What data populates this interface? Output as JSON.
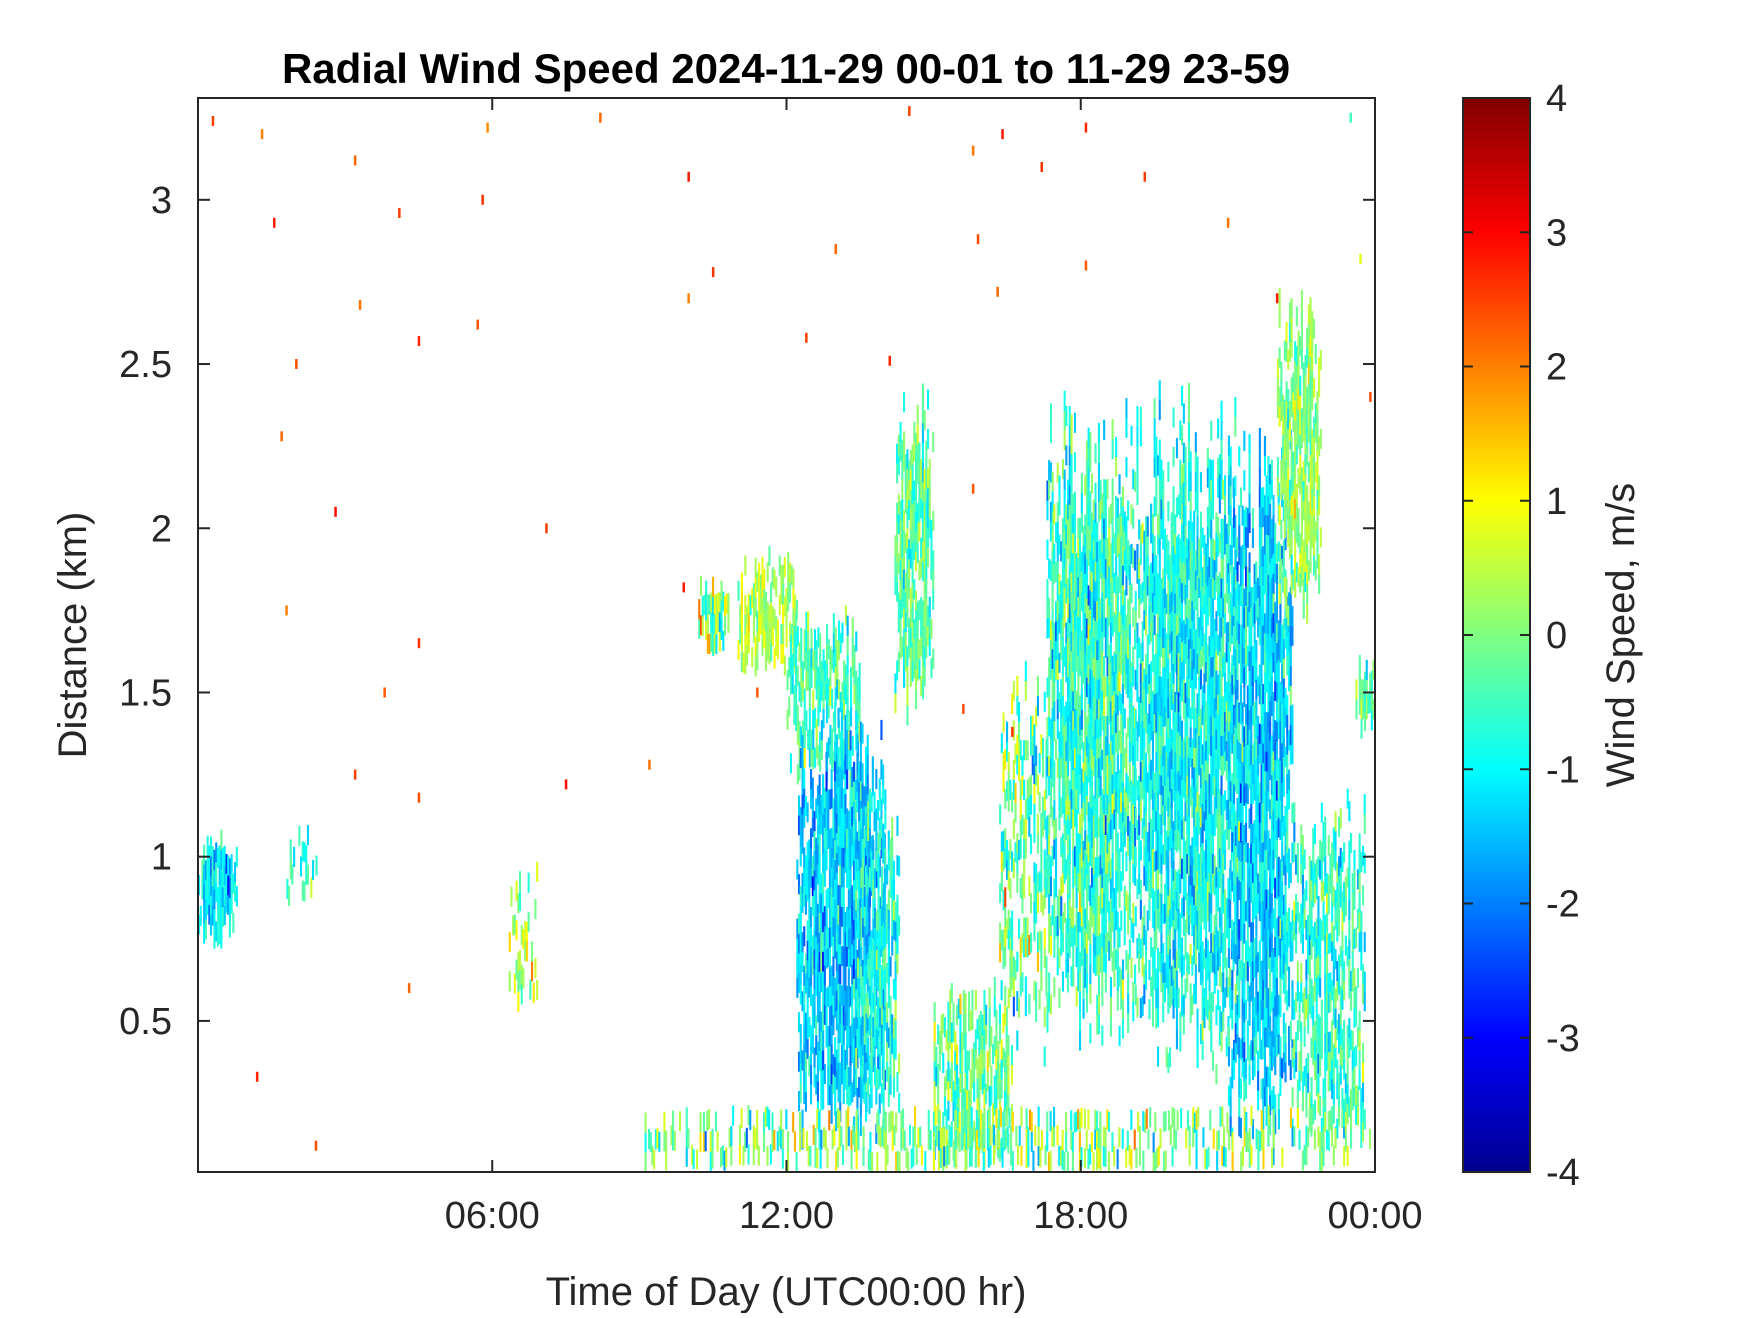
{
  "chart_data": {
    "type": "heatmap",
    "title": "Radial Wind Speed 2024-11-29 00-01 to 11-29 23-59",
    "xlabel": "Time of Day (UTC00:00 hr)",
    "ylabel": "Distance (km)",
    "x_unit": "hours",
    "xlim": [
      0,
      24
    ],
    "ylim": [
      0.04,
      3.31
    ],
    "x_ticks": [
      6,
      12,
      18,
      24
    ],
    "x_tick_labels": [
      "06:00",
      "12:00",
      "18:00",
      "00:00"
    ],
    "y_ticks": [
      0.5,
      1,
      1.5,
      2,
      2.5,
      3
    ],
    "y_tick_labels": [
      "0.5",
      "1",
      "1.5",
      "2",
      "2.5",
      "3"
    ],
    "colorbar": {
      "label": "Wind Speed, m/s",
      "colormap": "jet",
      "clim": [
        -4,
        4
      ],
      "ticks": [
        -4,
        -3,
        -2,
        -1,
        0,
        1,
        2,
        3,
        4
      ],
      "tick_labels": [
        "-4",
        "-3",
        "-2",
        "-1",
        "0",
        "1",
        "2",
        "3",
        "4"
      ]
    },
    "grid": false,
    "cell_width_hours": 0.035,
    "cell_height_km": 0.06,
    "regions": [
      {
        "x": [
          0.0,
          0.8
        ],
        "y": [
          0.72,
          1.05
        ],
        "mean": -1.2,
        "spread": 0.9,
        "density": 0.9
      },
      {
        "x": [
          1.8,
          2.4
        ],
        "y": [
          0.85,
          1.08
        ],
        "mean": -0.5,
        "spread": 1.0,
        "density": 0.3
      },
      {
        "x": [
          6.3,
          6.9
        ],
        "y": [
          0.5,
          0.95
        ],
        "mean": 0.5,
        "spread": 1.0,
        "density": 0.35
      },
      {
        "x": [
          10.2,
          10.8
        ],
        "y": [
          1.6,
          1.8
        ],
        "mean": 0.2,
        "spread": 1.6,
        "density": 0.95
      },
      {
        "x": [
          11.0,
          12.2
        ],
        "y": [
          1.55,
          1.9
        ],
        "mean": 0.4,
        "spread": 0.8,
        "density": 0.75
      },
      {
        "x": [
          12.0,
          13.5
        ],
        "y": [
          1.2,
          1.75
        ],
        "mean": -0.5,
        "spread": 1.0,
        "density": 0.7
      },
      {
        "x": [
          12.2,
          14.0
        ],
        "y": [
          0.1,
          1.45
        ],
        "mean": -1.4,
        "spread": 0.9,
        "density": 0.9
      },
      {
        "x": [
          13.4,
          14.3
        ],
        "y": [
          0.15,
          1.2
        ],
        "mean": -0.8,
        "spread": 1.0,
        "density": 0.7
      },
      {
        "x": [
          14.2,
          15.0
        ],
        "y": [
          1.4,
          2.4
        ],
        "mean": -0.3,
        "spread": 0.9,
        "density": 0.85
      },
      {
        "x": [
          15.0,
          16.6
        ],
        "y": [
          0.04,
          0.6
        ],
        "mean": -0.2,
        "spread": 1.1,
        "density": 0.7
      },
      {
        "x": [
          16.3,
          17.3
        ],
        "y": [
          0.35,
          1.6
        ],
        "mean": -0.3,
        "spread": 1.3,
        "density": 0.55
      },
      {
        "x": [
          17.3,
          19.1
        ],
        "y": [
          0.4,
          2.45
        ],
        "mean": -0.6,
        "spread": 1.1,
        "density": 0.9
      },
      {
        "x": [
          19.1,
          21.2
        ],
        "y": [
          0.3,
          2.45
        ],
        "mean": -0.9,
        "spread": 1.0,
        "density": 0.9
      },
      {
        "x": [
          21.0,
          22.3
        ],
        "y": [
          0.05,
          2.3
        ],
        "mean": -1.3,
        "spread": 1.0,
        "density": 0.9
      },
      {
        "x": [
          22.0,
          22.9
        ],
        "y": [
          1.7,
          2.72
        ],
        "mean": 0.1,
        "spread": 0.9,
        "density": 0.8
      },
      {
        "x": [
          22.3,
          23.8
        ],
        "y": [
          0.04,
          1.2
        ],
        "mean": -0.6,
        "spread": 1.0,
        "density": 0.7
      },
      {
        "x": [
          23.6,
          24.0
        ],
        "y": [
          1.35,
          1.6
        ],
        "mean": -0.3,
        "spread": 0.9,
        "density": 0.8
      },
      {
        "x": [
          9.0,
          24.0
        ],
        "y": [
          0.04,
          0.2
        ],
        "mean": 0.0,
        "spread": 1.4,
        "density": 0.5
      }
    ],
    "isolated_points": [
      {
        "x": 0.3,
        "y": 3.24,
        "v": 2.5
      },
      {
        "x": 1.3,
        "y": 3.2,
        "v": 2.0
      },
      {
        "x": 1.55,
        "y": 2.93,
        "v": 2.8
      },
      {
        "x": 3.2,
        "y": 3.12,
        "v": 2.2
      },
      {
        "x": 4.1,
        "y": 2.96,
        "v": 2.5
      },
      {
        "x": 5.9,
        "y": 3.22,
        "v": 1.9
      },
      {
        "x": 5.8,
        "y": 3.0,
        "v": 2.6
      },
      {
        "x": 8.2,
        "y": 3.25,
        "v": 2.2
      },
      {
        "x": 10.0,
        "y": 3.07,
        "v": 2.8
      },
      {
        "x": 3.3,
        "y": 2.68,
        "v": 2.1
      },
      {
        "x": 2.0,
        "y": 2.5,
        "v": 2.4
      },
      {
        "x": 5.7,
        "y": 2.62,
        "v": 2.3
      },
      {
        "x": 4.5,
        "y": 2.57,
        "v": 2.7
      },
      {
        "x": 1.7,
        "y": 2.28,
        "v": 2.2
      },
      {
        "x": 2.8,
        "y": 2.05,
        "v": 2.9
      },
      {
        "x": 7.1,
        "y": 2.0,
        "v": 2.5
      },
      {
        "x": 1.8,
        "y": 1.75,
        "v": 2.0
      },
      {
        "x": 4.5,
        "y": 1.65,
        "v": 2.6
      },
      {
        "x": 3.8,
        "y": 1.5,
        "v": 2.3
      },
      {
        "x": 3.2,
        "y": 1.25,
        "v": 2.5
      },
      {
        "x": 4.5,
        "y": 1.18,
        "v": 2.4
      },
      {
        "x": 9.2,
        "y": 1.28,
        "v": 2.1
      },
      {
        "x": 7.5,
        "y": 1.22,
        "v": 2.9
      },
      {
        "x": 4.3,
        "y": 0.6,
        "v": 2.2
      },
      {
        "x": 1.2,
        "y": 0.33,
        "v": 2.7
      },
      {
        "x": 2.4,
        "y": 0.12,
        "v": 2.4
      },
      {
        "x": 10.0,
        "y": 2.7,
        "v": 2.0
      },
      {
        "x": 10.5,
        "y": 2.78,
        "v": 2.6
      },
      {
        "x": 9.9,
        "y": 1.82,
        "v": 2.8
      },
      {
        "x": 11.4,
        "y": 1.5,
        "v": 2.3
      },
      {
        "x": 14.5,
        "y": 3.27,
        "v": 2.5
      },
      {
        "x": 15.8,
        "y": 3.15,
        "v": 2.1
      },
      {
        "x": 16.4,
        "y": 3.2,
        "v": 2.8
      },
      {
        "x": 15.9,
        "y": 2.88,
        "v": 2.4
      },
      {
        "x": 16.3,
        "y": 2.72,
        "v": 2.2
      },
      {
        "x": 17.2,
        "y": 3.1,
        "v": 2.6
      },
      {
        "x": 18.1,
        "y": 3.22,
        "v": 2.7
      },
      {
        "x": 18.1,
        "y": 2.8,
        "v": 2.3
      },
      {
        "x": 19.3,
        "y": 3.07,
        "v": 2.5
      },
      {
        "x": 21.0,
        "y": 2.93,
        "v": 2.1
      },
      {
        "x": 22.0,
        "y": 2.7,
        "v": 2.8
      },
      {
        "x": 23.5,
        "y": 3.25,
        "v": -0.5
      },
      {
        "x": 23.7,
        "y": 2.82,
        "v": 0.8
      },
      {
        "x": 23.9,
        "y": 2.4,
        "v": 2.4
      },
      {
        "x": 13.0,
        "y": 2.85,
        "v": 2.2
      },
      {
        "x": 12.4,
        "y": 2.58,
        "v": 2.5
      },
      {
        "x": 14.1,
        "y": 2.51,
        "v": 2.7
      },
      {
        "x": 15.8,
        "y": 2.12,
        "v": 2.3
      },
      {
        "x": 15.6,
        "y": 1.45,
        "v": 2.4
      },
      {
        "x": 16.6,
        "y": 1.38,
        "v": 2.6
      }
    ]
  }
}
